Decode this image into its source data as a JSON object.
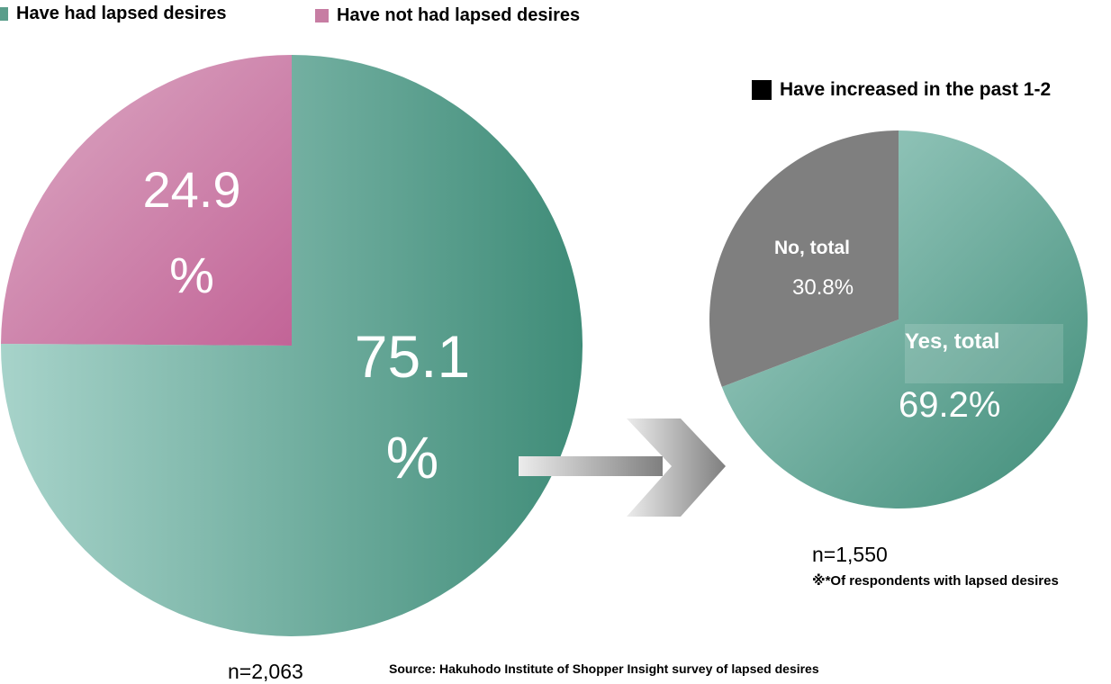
{
  "legend": {
    "had_label": "Have had lapsed desires",
    "had_color": "#5a9e8b",
    "not_label": "Have not had lapsed desires",
    "not_color": "#c77da3",
    "increased_label": "Have increased in the past 1-2",
    "increased_color": "#000000"
  },
  "colors": {
    "teal_light": "#a7d3ca",
    "teal_dark": "#3f8c78",
    "pink_light": "#dcaac4",
    "pink_dark": "#c26497",
    "gray": "#7f7f7f",
    "arrow_light": "#ececec",
    "arrow_dark": "#7f7f7f"
  },
  "arrow_icon": "right-arrow-icon",
  "chart_data": [
    {
      "type": "pie",
      "slices": [
        {
          "label": "Have had lapsed desires",
          "value": 75.1,
          "display": "75.1",
          "unit": "%"
        },
        {
          "label": "Have not had lapsed desires",
          "value": 24.9,
          "display": "24.9",
          "unit": "%"
        }
      ],
      "n_label": "n=2,063"
    },
    {
      "type": "pie",
      "legend": "Have increased in the past 1-2",
      "slices": [
        {
          "label": "Yes, total",
          "value": 69.2,
          "display": "69.2%"
        },
        {
          "label": "No, total",
          "value": 30.8,
          "display": "30.8%"
        }
      ],
      "n_label": "n=1,550",
      "note": "※*Of respondents with lapsed desires"
    }
  ],
  "source": "Source: Hakuhodo Institute of Shopper Insight survey of lapsed desires"
}
